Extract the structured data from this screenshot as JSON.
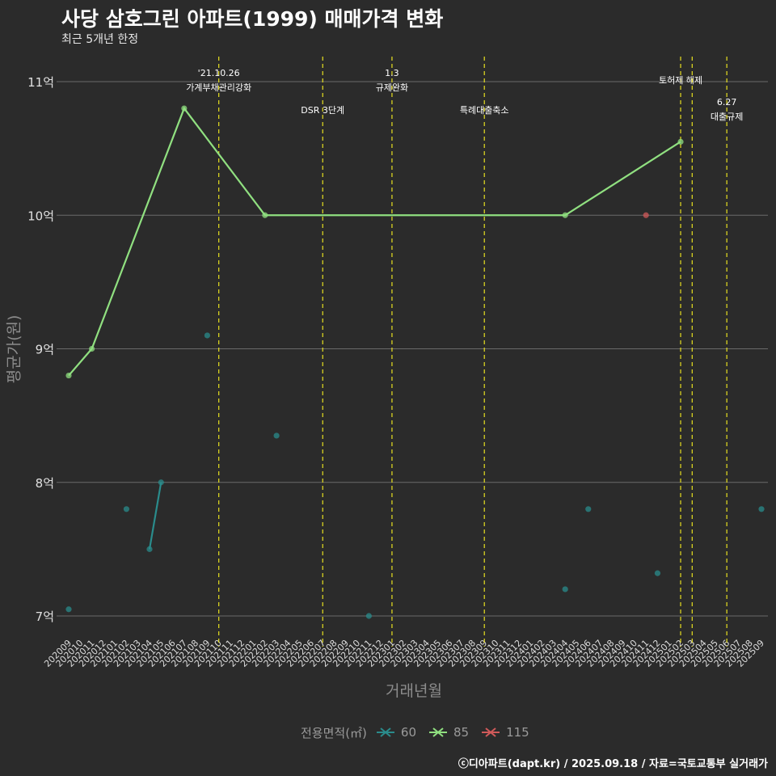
{
  "chart_data": {
    "type": "line",
    "title": "사당 삼호그린 아파트(1999) 매매가격 변화",
    "subtitle": "최근 5개년 한정",
    "xlabel": "거래년월",
    "ylabel": "평균가(원)",
    "ylim": [
      6.85,
      11.2
    ],
    "yticks": [
      7,
      8,
      9,
      10,
      11
    ],
    "ytick_labels": [
      "7억",
      "8억",
      "9억",
      "10억",
      "11억"
    ],
    "categories": [
      "202009",
      "202010",
      "202011",
      "202012",
      "202101",
      "202102",
      "202103",
      "202104",
      "202105",
      "202106",
      "202107",
      "202108",
      "202109",
      "202110",
      "202111",
      "202112",
      "202201",
      "202202",
      "202203",
      "202204",
      "202205",
      "202206",
      "202207",
      "202208",
      "202209",
      "202210",
      "202211",
      "202212",
      "202301",
      "202302",
      "202303",
      "202304",
      "202305",
      "202306",
      "202307",
      "202308",
      "202309",
      "202310",
      "202311",
      "202312",
      "202401",
      "202402",
      "202403",
      "202404",
      "202405",
      "202406",
      "202407",
      "202408",
      "202409",
      "202410",
      "202411",
      "202412",
      "202501",
      "202502",
      "202503",
      "202504",
      "202505",
      "202506",
      "202507",
      "202508",
      "202509"
    ],
    "legend_title": "전용면적(㎡)",
    "series": [
      {
        "name": "60",
        "color": "#2a8c8c",
        "points": [
          [
            "202009",
            7.05
          ],
          [
            "202102",
            7.8
          ],
          [
            "202104",
            7.5
          ],
          [
            "202105",
            8.0
          ],
          [
            "202109",
            9.1
          ],
          [
            "202203",
            8.35
          ],
          [
            "202211",
            7.0
          ],
          [
            "202404",
            7.2
          ],
          [
            "202406",
            7.8
          ],
          [
            "202412",
            7.32
          ],
          [
            "202509",
            7.8
          ]
        ],
        "segments": [
          [
            "202104",
            "202105"
          ]
        ]
      },
      {
        "name": "85",
        "color": "#90e080",
        "points": [
          [
            "202009",
            8.8
          ],
          [
            "202011",
            9.0
          ],
          [
            "202107",
            10.8
          ],
          [
            "202202",
            10.0
          ],
          [
            "202404",
            10.0
          ],
          [
            "202502",
            10.55
          ]
        ],
        "segments": [
          [
            "202009",
            "202011",
            "202107",
            "202202",
            "202404",
            "202502"
          ]
        ]
      },
      {
        "name": "115",
        "color": "#d05a5a",
        "points": [
          [
            "202411",
            10.0
          ]
        ],
        "segments": []
      }
    ],
    "annotations": [
      {
        "x": "202110",
        "lines": [
          "'21.10.26",
          "가계부채관리강화"
        ],
        "level": "high"
      },
      {
        "x": "202207",
        "lines": [
          "DSR 3단계"
        ],
        "level": "low"
      },
      {
        "x": "202301",
        "lines": [
          "1.3",
          "규제완화"
        ],
        "level": "high"
      },
      {
        "x": "202309",
        "lines": [
          "특례대출축소"
        ],
        "level": "low"
      },
      {
        "x": "202502",
        "lines": [
          "토허제 해제"
        ],
        "level": "mid"
      },
      {
        "x": "202503",
        "lines": [],
        "level": "none"
      },
      {
        "x": "202506",
        "lines": [
          "6.27",
          "대출규제"
        ],
        "level": "mid2"
      }
    ],
    "caption": "ⓒ디아파트(dapt.kr) / 2025.09.18 / 자료=국토교통부 실거래가"
  }
}
